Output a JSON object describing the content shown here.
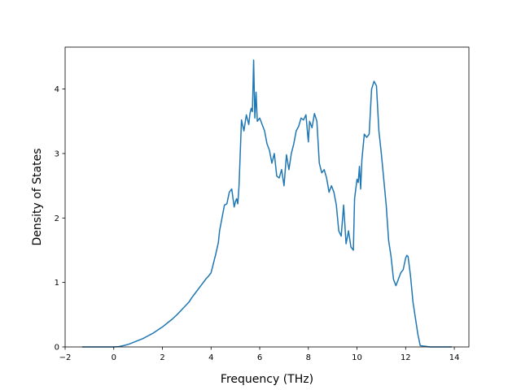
{
  "chart_data": {
    "type": "line",
    "title": "",
    "xlabel": "Frequency (THz)",
    "ylabel": "Density of States",
    "xlim": [
      -2,
      14.6
    ],
    "ylim": [
      0,
      4.65
    ],
    "xticks": [
      -2,
      0,
      2,
      4,
      6,
      8,
      10,
      12,
      14
    ],
    "yticks": [
      0,
      1,
      2,
      3,
      4
    ],
    "grid": false,
    "legend": "none",
    "series": [
      {
        "color": "#1f77b4",
        "x": [
          -1.3,
          -1.0,
          -0.5,
          0.0,
          0.2,
          0.4,
          0.6,
          0.8,
          1.0,
          1.2,
          1.4,
          1.6,
          1.8,
          2.0,
          2.2,
          2.4,
          2.6,
          2.8,
          3.0,
          3.1,
          3.2,
          3.4,
          3.6,
          3.8,
          3.9,
          4.0,
          4.1,
          4.2,
          4.3,
          4.35,
          4.45,
          4.55,
          4.65,
          4.75,
          4.85,
          4.95,
          5.0,
          5.05,
          5.1,
          5.15,
          5.25,
          5.35,
          5.45,
          5.55,
          5.6,
          5.65,
          5.7,
          5.75,
          5.8,
          5.85,
          5.9,
          6.0,
          6.1,
          6.2,
          6.3,
          6.4,
          6.5,
          6.6,
          6.7,
          6.8,
          6.9,
          7.0,
          7.1,
          7.2,
          7.3,
          7.4,
          7.5,
          7.6,
          7.7,
          7.8,
          7.9,
          8.0,
          8.05,
          8.15,
          8.25,
          8.35,
          8.45,
          8.55,
          8.65,
          8.75,
          8.85,
          8.95,
          9.05,
          9.15,
          9.25,
          9.35,
          9.45,
          9.55,
          9.65,
          9.75,
          9.85,
          9.9,
          10.0,
          10.05,
          10.1,
          10.15,
          10.2,
          10.3,
          10.4,
          10.5,
          10.6,
          10.7,
          10.8,
          10.9,
          11.0,
          11.1,
          11.2,
          11.3,
          11.4,
          11.5,
          11.6,
          11.7,
          11.8,
          11.9,
          12.0,
          12.05,
          12.1,
          12.2,
          12.3,
          12.4,
          12.5,
          12.6,
          13.0,
          13.5,
          13.9
        ],
        "y": [
          0.0,
          0.0,
          0.0,
          0.0,
          0.005,
          0.02,
          0.04,
          0.07,
          0.1,
          0.13,
          0.17,
          0.21,
          0.26,
          0.31,
          0.37,
          0.43,
          0.5,
          0.58,
          0.66,
          0.7,
          0.76,
          0.86,
          0.96,
          1.06,
          1.1,
          1.15,
          1.3,
          1.45,
          1.62,
          1.8,
          2.0,
          2.2,
          2.22,
          2.4,
          2.45,
          2.17,
          2.25,
          2.3,
          2.22,
          2.5,
          3.52,
          3.35,
          3.6,
          3.45,
          3.62,
          3.7,
          3.65,
          4.45,
          3.55,
          3.95,
          3.5,
          3.55,
          3.45,
          3.35,
          3.15,
          3.05,
          2.85,
          3.0,
          2.65,
          2.62,
          2.75,
          2.5,
          2.98,
          2.75,
          3.0,
          3.15,
          3.35,
          3.42,
          3.55,
          3.52,
          3.6,
          3.18,
          3.5,
          3.4,
          3.62,
          3.5,
          2.85,
          2.7,
          2.75,
          2.62,
          2.4,
          2.5,
          2.4,
          2.2,
          1.8,
          1.72,
          2.2,
          1.6,
          1.8,
          1.55,
          1.5,
          2.3,
          2.6,
          2.55,
          2.8,
          2.45,
          2.9,
          3.3,
          3.25,
          3.3,
          4.0,
          4.12,
          4.05,
          3.35,
          3.0,
          2.6,
          2.2,
          1.65,
          1.4,
          1.05,
          0.95,
          1.05,
          1.15,
          1.2,
          1.38,
          1.42,
          1.4,
          1.1,
          0.7,
          0.45,
          0.2,
          0.02,
          0.0,
          0.0,
          0.0
        ]
      }
    ]
  }
}
